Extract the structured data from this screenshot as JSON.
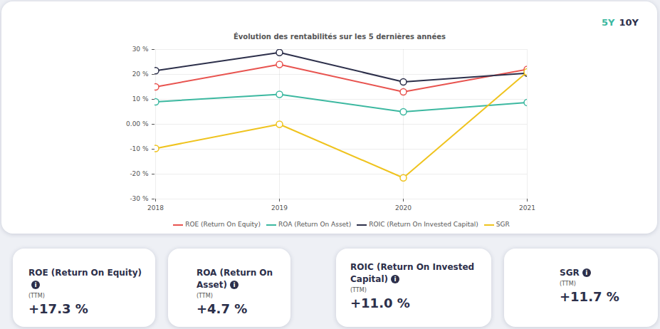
{
  "chart_data": {
    "type": "line",
    "title": "Évolution des rentabilités sur les 5 dernières années",
    "categories": [
      "2018",
      "2019",
      "2020",
      "2021"
    ],
    "series": [
      {
        "name": "ROE (Return On Equity)",
        "color": "#e8534f",
        "values": [
          15,
          24,
          13,
          22
        ]
      },
      {
        "name": "ROA (Return On Asset)",
        "color": "#3cb8a0",
        "values": [
          9,
          12,
          5,
          8.7
        ]
      },
      {
        "name": "ROIC (Return On Invested Capital)",
        "color": "#2c2f4a",
        "values": [
          21.5,
          28.8,
          17,
          20.5
        ]
      },
      {
        "name": "SGR",
        "color": "#efc31e",
        "values": [
          -9.7,
          0,
          -21.5,
          21
        ]
      }
    ],
    "ylim": [
      -30,
      30
    ],
    "yticks": [
      {
        "value": -30,
        "label": "-30 %"
      },
      {
        "value": -20,
        "label": "-20 %"
      },
      {
        "value": -10,
        "label": "-10 %"
      },
      {
        "value": 0,
        "label": "0.00 %"
      },
      {
        "value": 10,
        "label": "10 %"
      },
      {
        "value": 20,
        "label": "20 %"
      },
      {
        "value": 30,
        "label": "30 %"
      }
    ],
    "grid": true,
    "marker": "circle",
    "legend": "bottom"
  },
  "periods": [
    {
      "label": "5Y",
      "color": "#3cb8a0"
    },
    {
      "label": "10Y",
      "color": "#2c2f4a"
    }
  ],
  "cards": [
    {
      "title": "ROE (Return On Equity)",
      "subtitle": "(TTM)",
      "value": "+17.3 %"
    },
    {
      "title": "ROA (Return On Asset)",
      "subtitle": "(TTM)",
      "value": "+4.7 %"
    },
    {
      "title": "ROIC (Return On Invested Capital)",
      "subtitle": "(TTM)",
      "value": "+11.0 %"
    },
    {
      "title": "SGR",
      "subtitle": "(TTM)",
      "value": "+11.7 %"
    }
  ]
}
